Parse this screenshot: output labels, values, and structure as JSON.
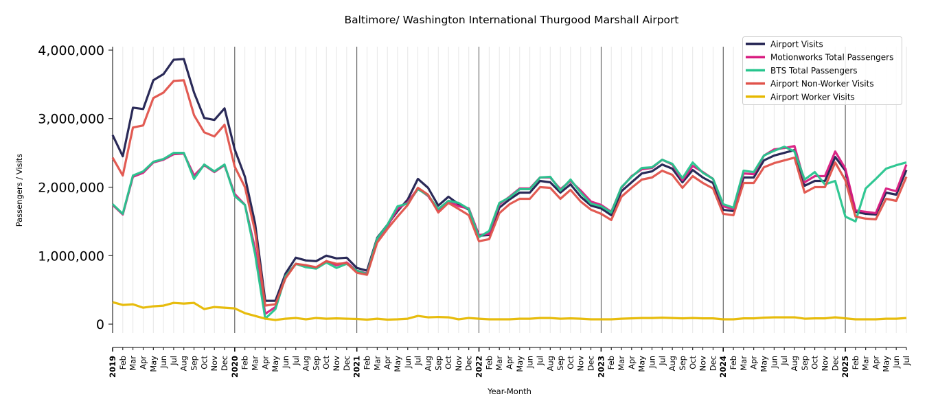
{
  "chart_data": {
    "type": "line",
    "title": "Baltimore/ Washington International Thurgood Marshall Airport",
    "xlabel": "Year-Month",
    "ylabel": "Passengers / Visits",
    "ylim": [
      -130000,
      4050000
    ],
    "yticks": [
      0,
      1000000,
      2000000,
      3000000,
      4000000
    ],
    "ytick_labels": [
      "0",
      "1,000,000",
      "2,000,000",
      "3,000,000",
      "4,000,000"
    ],
    "x_start": "2019-01",
    "x_end": "2025-07",
    "month_labels": [
      "Jan",
      "Feb",
      "Mar",
      "Apr",
      "May",
      "Jun",
      "Jul",
      "Aug",
      "Sep",
      "Oct",
      "Nov",
      "Dec"
    ],
    "grid": "vertical monthly, darker at year boundaries",
    "legend_placement": "top-right",
    "series": [
      {
        "name": "Airport Visits",
        "color": "#1f1f4f",
        "values": [
          2.76,
          2.45,
          3.16,
          3.14,
          3.56,
          3.65,
          3.86,
          3.87,
          3.38,
          3.01,
          2.98,
          3.15,
          2.55,
          2.15,
          1.47,
          0.34,
          0.34,
          0.74,
          0.97,
          0.93,
          0.92,
          1.0,
          0.96,
          0.97,
          0.82,
          0.78,
          1.26,
          1.45,
          1.65,
          1.82,
          2.12,
          1.99,
          1.73,
          1.86,
          1.75,
          1.67,
          1.29,
          1.3,
          1.7,
          1.82,
          1.92,
          1.92,
          2.09,
          2.07,
          1.92,
          2.04,
          1.86,
          1.73,
          1.69,
          1.59,
          1.94,
          2.07,
          2.2,
          2.23,
          2.33,
          2.27,
          2.07,
          2.25,
          2.14,
          2.06,
          1.67,
          1.65,
          2.14,
          2.14,
          2.39,
          2.46,
          2.5,
          2.54,
          2.02,
          2.09,
          2.09,
          2.44,
          2.24,
          1.64,
          1.61,
          1.6,
          1.92,
          1.89,
          2.25
        ]
      },
      {
        "name": "Motionworks Total Passengers",
        "color": "#d81b7f",
        "values": [
          1.74,
          1.6,
          2.15,
          2.21,
          2.36,
          2.4,
          2.48,
          2.49,
          2.17,
          2.32,
          2.22,
          2.32,
          1.9,
          1.74,
          1.1,
          0.15,
          0.25,
          0.7,
          0.88,
          0.85,
          0.82,
          0.92,
          0.86,
          0.9,
          0.78,
          0.74,
          1.24,
          1.43,
          1.68,
          1.78,
          1.98,
          1.87,
          1.66,
          1.8,
          1.72,
          1.69,
          1.3,
          1.32,
          1.75,
          1.86,
          1.98,
          1.98,
          2.14,
          2.14,
          1.97,
          2.09,
          1.95,
          1.79,
          1.74,
          1.64,
          1.99,
          2.16,
          2.26,
          2.28,
          2.4,
          2.33,
          2.1,
          2.31,
          2.22,
          2.12,
          1.72,
          1.68,
          2.2,
          2.19,
          2.46,
          2.55,
          2.57,
          2.6,
          2.07,
          2.16,
          2.16,
          2.52,
          2.27,
          1.66,
          1.64,
          1.62,
          1.98,
          1.94,
          2.33
        ]
      },
      {
        "name": "BTS Total Passengers",
        "color": "#26c48d",
        "values": [
          1.75,
          1.61,
          2.17,
          2.23,
          2.37,
          2.41,
          2.5,
          2.5,
          2.12,
          2.33,
          2.23,
          2.33,
          1.87,
          1.74,
          1.02,
          0.08,
          0.22,
          0.7,
          0.88,
          0.83,
          0.81,
          0.9,
          0.82,
          0.88,
          0.78,
          0.73,
          1.25,
          1.45,
          1.72,
          1.76,
          1.97,
          1.88,
          1.68,
          1.8,
          1.77,
          1.68,
          1.27,
          1.36,
          1.77,
          1.85,
          1.97,
          1.97,
          2.14,
          2.15,
          1.95,
          2.11,
          1.92,
          1.76,
          1.72,
          1.63,
          2.0,
          2.15,
          2.28,
          2.29,
          2.4,
          2.34,
          2.13,
          2.36,
          2.21,
          2.12,
          1.75,
          1.7,
          2.24,
          2.22,
          2.46,
          2.53,
          2.59,
          2.52,
          2.11,
          2.22,
          2.04,
          2.09,
          1.57,
          1.5,
          1.98,
          2.12,
          2.27,
          2.32,
          2.36
        ]
      },
      {
        "name": "Airport Non-Worker Visits",
        "color": "#e0524a",
        "values": [
          2.43,
          2.17,
          2.87,
          2.9,
          3.3,
          3.38,
          3.55,
          3.56,
          3.05,
          2.8,
          2.74,
          2.91,
          2.3,
          2.0,
          1.35,
          0.27,
          0.29,
          0.67,
          0.88,
          0.86,
          0.83,
          0.92,
          0.88,
          0.89,
          0.75,
          0.72,
          1.19,
          1.39,
          1.57,
          1.74,
          1.99,
          1.89,
          1.63,
          1.77,
          1.68,
          1.59,
          1.21,
          1.24,
          1.62,
          1.75,
          1.83,
          1.83,
          2.0,
          1.99,
          1.83,
          1.96,
          1.79,
          1.67,
          1.61,
          1.52,
          1.86,
          1.99,
          2.11,
          2.14,
          2.24,
          2.18,
          1.99,
          2.16,
          2.06,
          1.98,
          1.61,
          1.59,
          2.06,
          2.06,
          2.29,
          2.35,
          2.39,
          2.43,
          1.92,
          2.0,
          2.0,
          2.36,
          2.1,
          1.57,
          1.54,
          1.53,
          1.83,
          1.8,
          2.15
        ]
      },
      {
        "name": "Airport Worker Visits",
        "color": "#e6b800",
        "values": [
          0.32,
          0.28,
          0.29,
          0.24,
          0.26,
          0.27,
          0.31,
          0.3,
          0.31,
          0.22,
          0.25,
          0.24,
          0.23,
          0.16,
          0.12,
          0.08,
          0.06,
          0.08,
          0.09,
          0.07,
          0.09,
          0.08,
          0.085,
          0.08,
          0.075,
          0.065,
          0.08,
          0.065,
          0.07,
          0.08,
          0.12,
          0.1,
          0.105,
          0.1,
          0.07,
          0.09,
          0.08,
          0.07,
          0.07,
          0.07,
          0.08,
          0.08,
          0.09,
          0.09,
          0.08,
          0.085,
          0.08,
          0.07,
          0.07,
          0.07,
          0.08,
          0.085,
          0.09,
          0.09,
          0.095,
          0.09,
          0.085,
          0.09,
          0.085,
          0.085,
          0.07,
          0.07,
          0.085,
          0.085,
          0.095,
          0.1,
          0.1,
          0.1,
          0.08,
          0.085,
          0.085,
          0.1,
          0.085,
          0.07,
          0.07,
          0.07,
          0.08,
          0.08,
          0.09
        ]
      }
    ],
    "values_unit": "millions"
  }
}
